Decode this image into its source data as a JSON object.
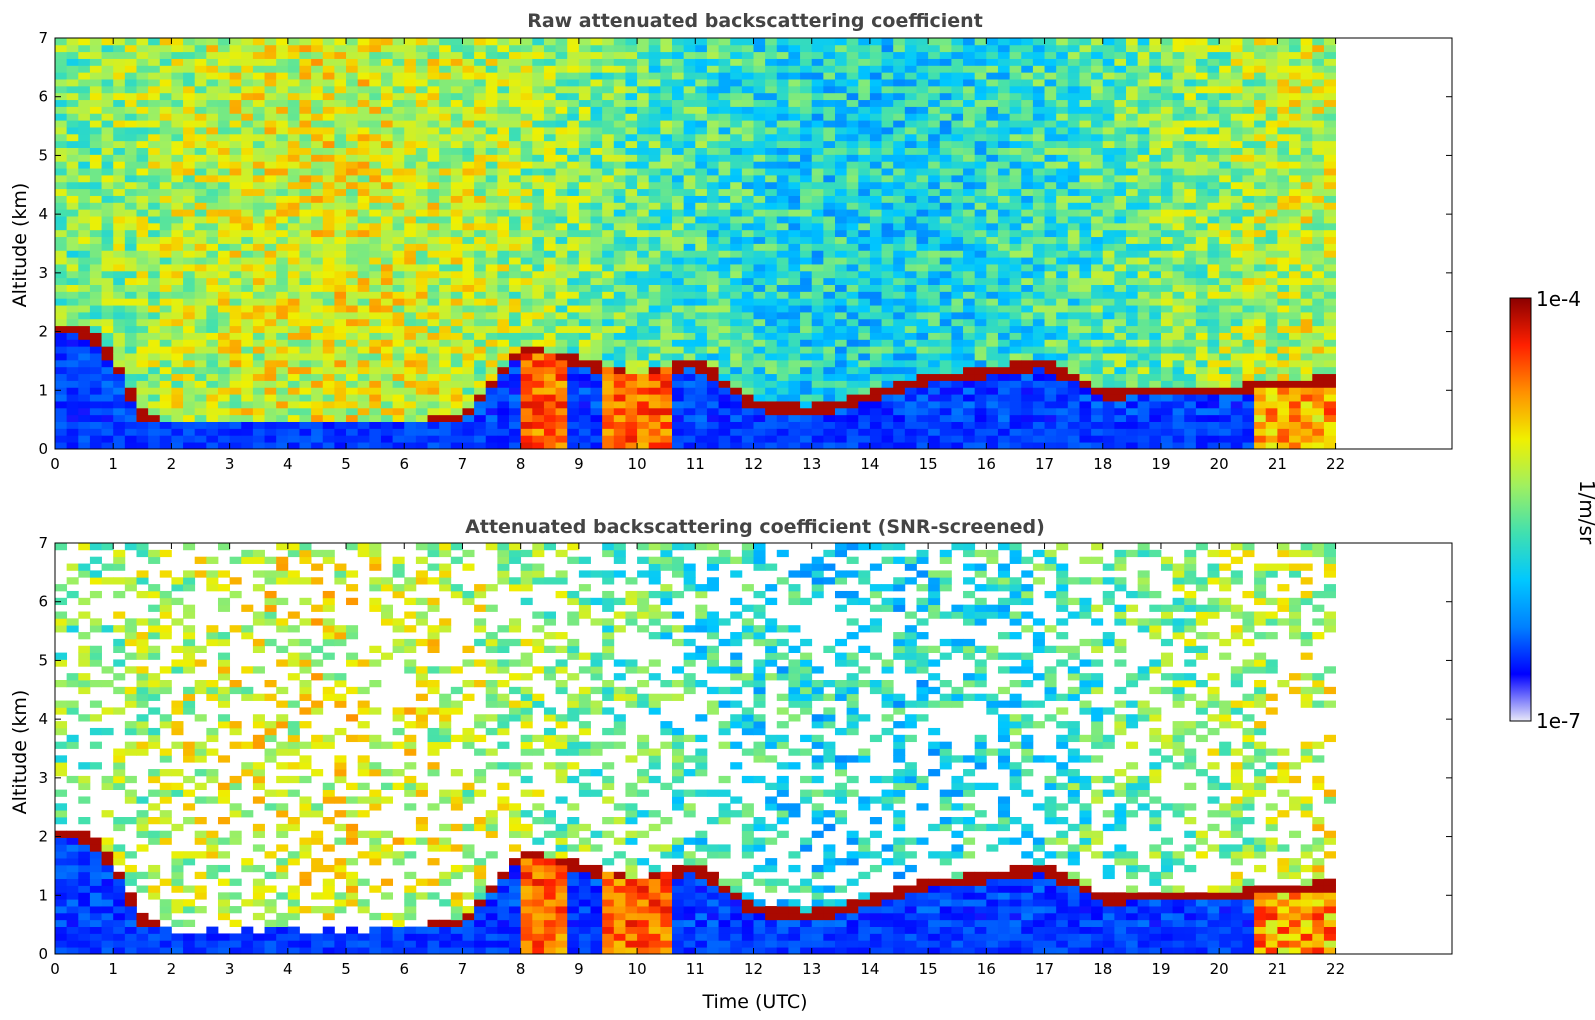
{
  "chart_data": [
    {
      "type": "heatmap",
      "title": "Raw attenuated backscattering coefficient",
      "ylabel": "Altitude (km)",
      "xlabel": "",
      "xlim": [
        0,
        24
      ],
      "ylim": [
        0,
        7
      ],
      "x_ticks": [
        "0",
        "1",
        "2",
        "3",
        "4",
        "5",
        "6",
        "7",
        "8",
        "9",
        "10",
        "11",
        "12",
        "13",
        "14",
        "15",
        "16",
        "17",
        "18",
        "19",
        "20",
        "21",
        "22"
      ],
      "y_ticks": [
        "0",
        "1",
        "2",
        "3",
        "4",
        "5",
        "6",
        "7"
      ],
      "data_end_time": 22,
      "screened": false,
      "cloud_base_height_km": [
        [
          0.0,
          2.05
        ],
        [
          0.6,
          2.0
        ],
        [
          1.0,
          1.5
        ],
        [
          1.5,
          0.6
        ],
        [
          2.0,
          0.3
        ],
        [
          3.0,
          0.28
        ],
        [
          4.0,
          0.3
        ],
        [
          5.0,
          0.28
        ],
        [
          6.0,
          0.35
        ],
        [
          7.0,
          0.55
        ],
        [
          8.0,
          1.7
        ],
        [
          9.0,
          1.5
        ],
        [
          10.0,
          1.2
        ],
        [
          11.0,
          1.5
        ],
        [
          12.0,
          0.75
        ],
        [
          13.0,
          0.65
        ],
        [
          14.0,
          0.9
        ],
        [
          15.0,
          1.2
        ],
        [
          16.0,
          1.3
        ],
        [
          17.0,
          1.45
        ],
        [
          18.0,
          0.95
        ],
        [
          19.0,
          1.0
        ],
        [
          20.0,
          1.0
        ],
        [
          21.0,
          1.05
        ],
        [
          22.0,
          1.2
        ]
      ]
    },
    {
      "type": "heatmap",
      "title": "Attenuated backscattering coefficient (SNR-screened)",
      "ylabel": "Altitude (km)",
      "xlabel": "Time (UTC)",
      "xlim": [
        0,
        24
      ],
      "ylim": [
        0,
        7
      ],
      "x_ticks": [
        "0",
        "1",
        "2",
        "3",
        "4",
        "5",
        "6",
        "7",
        "8",
        "9",
        "10",
        "11",
        "12",
        "13",
        "14",
        "15",
        "16",
        "17",
        "18",
        "19",
        "20",
        "21",
        "22"
      ],
      "y_ticks": [
        "0",
        "1",
        "2",
        "3",
        "4",
        "5",
        "6",
        "7"
      ],
      "data_end_time": 22,
      "screened": true
    }
  ],
  "colorbar": {
    "label": "1/m/sr",
    "max_label": "1e-4",
    "min_label": "1e-7",
    "scale": "log",
    "colormap": [
      "#e8e8f8",
      "#0000ff",
      "#0080ff",
      "#00c8ff",
      "#40e0b0",
      "#a0f060",
      "#f0f000",
      "#ff9000",
      "#ff2000",
      "#8b0000"
    ]
  }
}
